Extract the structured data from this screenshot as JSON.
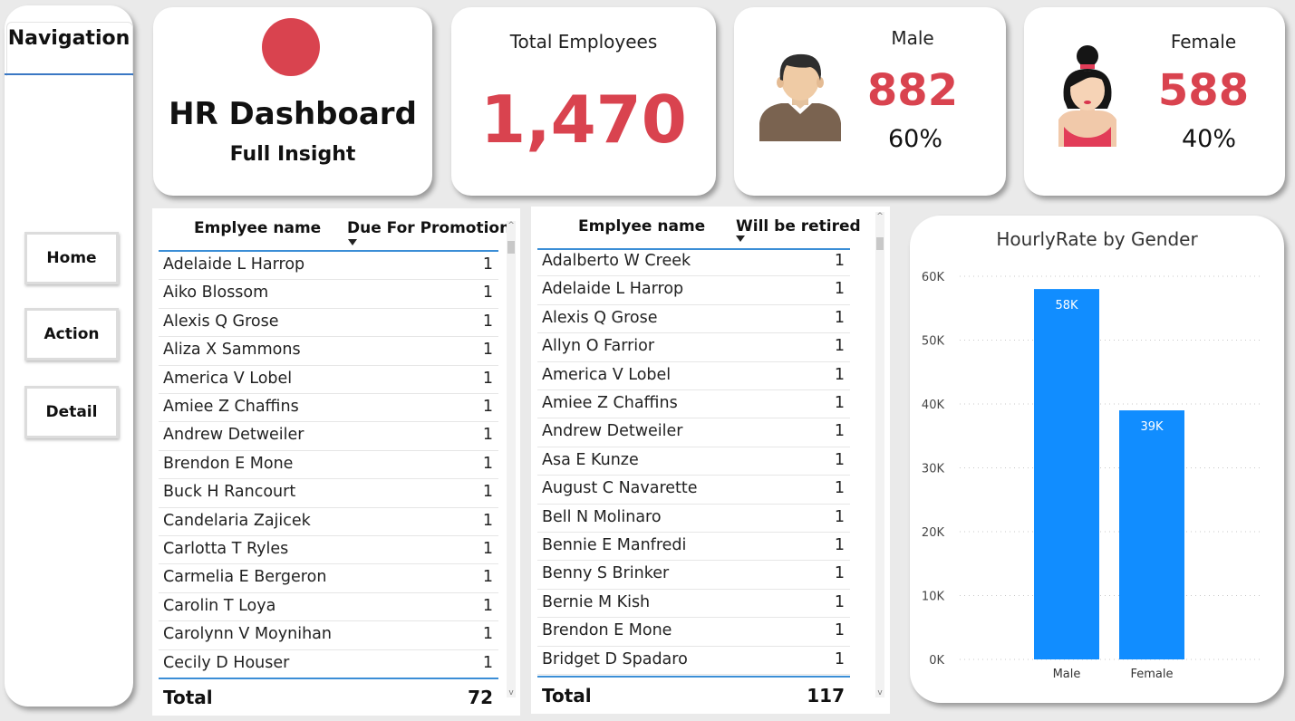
{
  "navigation": {
    "title": "Navigation",
    "buttons": [
      "Home",
      "Action",
      "Detail"
    ]
  },
  "header": {
    "title": "HR Dashboard",
    "subtitle": "Full Insight",
    "logo_color": "#d9434f"
  },
  "kpis": {
    "total": {
      "label": "Total Employees",
      "value": "1,470"
    },
    "male": {
      "label": "Male",
      "value": "882",
      "percent": "60%"
    },
    "female": {
      "label": "Female",
      "value": "588",
      "percent": "40%"
    },
    "accent_color": "#d9434f"
  },
  "promotion_table": {
    "col_name": "Emplyee name",
    "col_value": "Due For Promotion",
    "rows": [
      {
        "name": "Adelaide L Harrop",
        "value": "1"
      },
      {
        "name": "Aiko Blossom",
        "value": "1"
      },
      {
        "name": "Alexis Q Grose",
        "value": "1"
      },
      {
        "name": "Aliza X Sammons",
        "value": "1"
      },
      {
        "name": "America V Lobel",
        "value": "1"
      },
      {
        "name": "Amiee Z Chaffins",
        "value": "1"
      },
      {
        "name": "Andrew Detweiler",
        "value": "1"
      },
      {
        "name": "Brendon E Mone",
        "value": "1"
      },
      {
        "name": "Buck H Rancourt",
        "value": "1"
      },
      {
        "name": "Candelaria Zajicek",
        "value": "1"
      },
      {
        "name": "Carlotta T Ryles",
        "value": "1"
      },
      {
        "name": "Carmelia E Bergeron",
        "value": "1"
      },
      {
        "name": "Carolin T Loya",
        "value": "1"
      },
      {
        "name": "Carolynn V Moynihan",
        "value": "1"
      },
      {
        "name": "Cecily D Houser",
        "value": "1"
      }
    ],
    "total_label": "Total",
    "total_value": "72"
  },
  "retire_table": {
    "col_name": "Emplyee name",
    "col_value": "Will be retired",
    "rows": [
      {
        "name": "Adalberto W Creek",
        "value": "1"
      },
      {
        "name": "Adelaide L Harrop",
        "value": "1"
      },
      {
        "name": "Alexis Q Grose",
        "value": "1"
      },
      {
        "name": "Allyn O Farrior",
        "value": "1"
      },
      {
        "name": "America V Lobel",
        "value": "1"
      },
      {
        "name": "Amiee Z Chaffins",
        "value": "1"
      },
      {
        "name": "Andrew Detweiler",
        "value": "1"
      },
      {
        "name": "Asa E Kunze",
        "value": "1"
      },
      {
        "name": "August C Navarette",
        "value": "1"
      },
      {
        "name": "Bell N Molinaro",
        "value": "1"
      },
      {
        "name": "Bennie E Manfredi",
        "value": "1"
      },
      {
        "name": "Benny S Brinker",
        "value": "1"
      },
      {
        "name": "Bernie M Kish",
        "value": "1"
      },
      {
        "name": "Brendon E Mone",
        "value": "1"
      },
      {
        "name": "Bridget D Spadaro",
        "value": "1"
      }
    ],
    "total_label": "Total",
    "total_value": "117"
  },
  "chart_data": {
    "type": "bar",
    "title": "HourlyRate by Gender",
    "categories": [
      "Male",
      "Female"
    ],
    "values": [
      58000,
      39000
    ],
    "data_labels": [
      "58K",
      "39K"
    ],
    "yticks": [
      0,
      10000,
      20000,
      30000,
      40000,
      50000,
      60000
    ],
    "ytick_labels": [
      "0K",
      "10K",
      "20K",
      "30K",
      "40K",
      "50K",
      "60K"
    ],
    "ylim": [
      0,
      60000
    ],
    "xlabel": "",
    "ylabel": "",
    "bar_color": "#118dff"
  }
}
